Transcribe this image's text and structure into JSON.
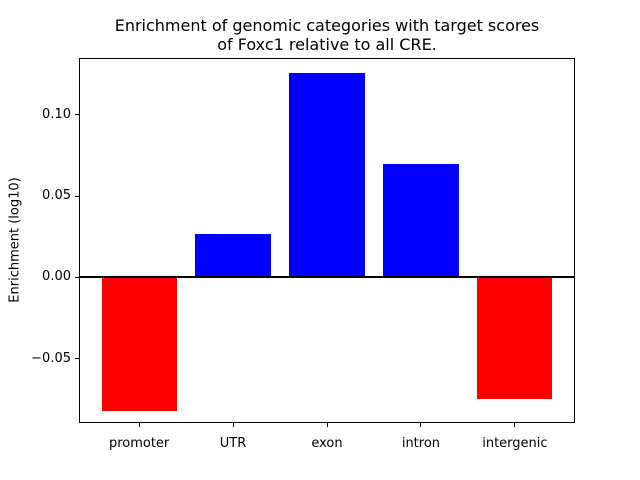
{
  "figure": {
    "title_line1": "Enrichment of genomic categories with target scores",
    "title_line2": "of Foxc1 relative to all CRE."
  },
  "chart_data": {
    "type": "bar",
    "title": "Enrichment of genomic categories with target scores\nof Foxc1 relative to all CRE.",
    "xlabel": "",
    "ylabel": "Enrichment (log10)",
    "categories": [
      "promoter",
      "UTR",
      "exon",
      "intron",
      "intergenic"
    ],
    "values": [
      -0.082,
      0.027,
      0.126,
      0.07,
      -0.075
    ],
    "bar_colors": [
      "#ff0000",
      "#0000ff",
      "#0000ff",
      "#0000ff",
      "#ff0000"
    ],
    "positive_color": "#0000ff",
    "negative_color": "#ff0000",
    "yticks": [
      0.1,
      0.05,
      0.0,
      -0.05
    ],
    "ytick_labels": [
      "0.10",
      "0.05",
      "0.00",
      "−0.05"
    ],
    "ylim": [
      -0.0895,
      0.135
    ],
    "zero_line": true,
    "zero_line_color": "#000000",
    "grid": false,
    "legend": null,
    "background_color": "#ffffff",
    "text_color": "#000000"
  }
}
